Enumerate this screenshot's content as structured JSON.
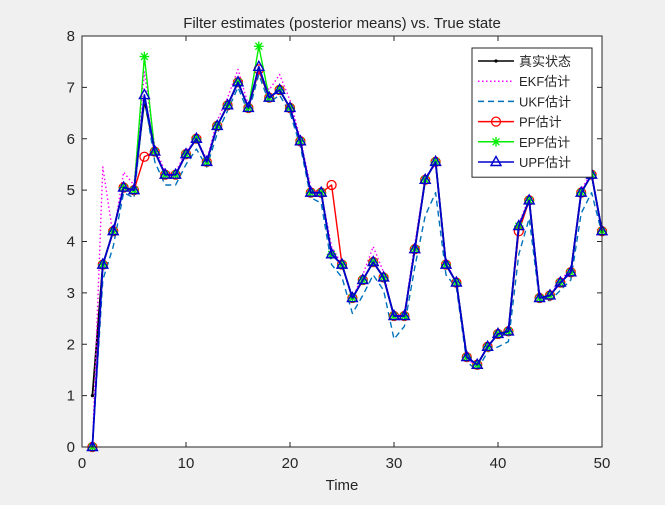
{
  "chart_data": {
    "type": "line",
    "title": "Filter estimates (posterior means) vs. True state",
    "xlabel": "Time",
    "ylabel": "",
    "xlim": [
      0,
      50
    ],
    "ylim": [
      0,
      8
    ],
    "xticks": [
      0,
      10,
      20,
      30,
      40,
      50
    ],
    "yticks": [
      0,
      1,
      2,
      3,
      4,
      5,
      6,
      7,
      8
    ],
    "grid": false,
    "legend_position": "top-right",
    "x": [
      1,
      2,
      3,
      4,
      5,
      6,
      7,
      8,
      9,
      10,
      11,
      12,
      13,
      14,
      15,
      16,
      17,
      18,
      19,
      20,
      21,
      22,
      23,
      24,
      25,
      26,
      27,
      28,
      29,
      30,
      31,
      32,
      33,
      34,
      35,
      36,
      37,
      38,
      39,
      40,
      41,
      42,
      43,
      44,
      45,
      46,
      47,
      48,
      49,
      50
    ],
    "series": [
      {
        "name": "真实状态",
        "color": "#000000",
        "style": "solid",
        "marker": "dot",
        "values": [
          1.0,
          3.55,
          4.2,
          5.05,
          5.0,
          6.75,
          5.75,
          5.3,
          5.3,
          5.7,
          6.0,
          5.55,
          6.25,
          6.65,
          7.1,
          6.6,
          7.35,
          6.8,
          6.95,
          6.6,
          5.95,
          4.95,
          4.95,
          3.75,
          3.55,
          2.9,
          3.25,
          3.6,
          3.3,
          2.55,
          2.55,
          3.85,
          5.2,
          5.55,
          3.55,
          3.2,
          1.75,
          1.6,
          1.95,
          2.2,
          2.25,
          4.3,
          4.8,
          2.9,
          2.95,
          3.2,
          3.4,
          4.95,
          5.3,
          4.2
        ]
      },
      {
        "name": "EKF估计",
        "color": "#ff00ff",
        "style": "dotted",
        "marker": "none",
        "values": [
          0.0,
          5.45,
          4.1,
          5.35,
          5.1,
          7.3,
          5.85,
          5.35,
          5.35,
          5.75,
          6.0,
          5.6,
          6.35,
          6.8,
          7.35,
          6.65,
          7.3,
          6.95,
          7.25,
          6.75,
          6.0,
          5.05,
          4.95,
          3.9,
          3.55,
          2.9,
          3.35,
          3.9,
          3.4,
          2.5,
          2.6,
          3.95,
          5.25,
          5.5,
          3.6,
          3.2,
          1.7,
          1.6,
          1.95,
          2.2,
          2.25,
          4.35,
          4.85,
          2.95,
          2.95,
          3.25,
          3.45,
          5.0,
          5.35,
          4.2
        ]
      },
      {
        "name": "UKF估计",
        "color": "#0072bd",
        "style": "dashed",
        "marker": "none",
        "values": [
          0.0,
          3.25,
          3.9,
          4.95,
          4.85,
          6.8,
          5.55,
          5.1,
          5.1,
          5.5,
          5.8,
          5.45,
          6.1,
          6.55,
          7.0,
          6.5,
          7.25,
          6.7,
          6.85,
          6.5,
          5.85,
          4.85,
          4.75,
          3.55,
          3.3,
          2.6,
          2.95,
          3.35,
          3.05,
          2.1,
          2.35,
          3.5,
          4.5,
          4.95,
          3.35,
          3.1,
          1.65,
          1.5,
          1.85,
          1.95,
          2.05,
          3.75,
          4.45,
          2.85,
          2.85,
          3.05,
          3.25,
          4.55,
          4.95,
          4.15
        ]
      },
      {
        "name": "PF估计",
        "color": "#ff0000",
        "style": "solid",
        "marker": "circle",
        "values": [
          0.0,
          3.55,
          4.2,
          5.05,
          5.0,
          5.65,
          5.75,
          5.3,
          5.3,
          5.7,
          6.0,
          5.55,
          6.25,
          6.65,
          7.1,
          6.6,
          7.35,
          6.8,
          6.95,
          6.6,
          5.95,
          4.95,
          4.95,
          5.1,
          3.55,
          2.9,
          3.25,
          3.6,
          3.3,
          2.55,
          2.55,
          3.85,
          5.2,
          5.55,
          3.55,
          3.2,
          1.75,
          1.6,
          1.95,
          2.2,
          2.25,
          4.2,
          4.8,
          2.9,
          2.95,
          3.2,
          3.4,
          4.95,
          5.3,
          4.2
        ]
      },
      {
        "name": "EPF估计",
        "color": "#00ee00",
        "style": "solid",
        "marker": "star",
        "values": [
          0.0,
          3.55,
          4.2,
          5.05,
          5.0,
          7.6,
          5.75,
          5.3,
          5.3,
          5.7,
          6.0,
          5.55,
          6.25,
          6.65,
          7.1,
          6.6,
          7.8,
          6.8,
          6.95,
          6.6,
          5.95,
          4.95,
          4.95,
          3.75,
          3.55,
          2.9,
          3.25,
          3.6,
          3.3,
          2.55,
          2.55,
          3.85,
          5.2,
          5.55,
          3.55,
          3.2,
          1.75,
          1.6,
          1.95,
          2.2,
          2.25,
          4.3,
          4.8,
          2.9,
          2.95,
          3.2,
          3.4,
          4.95,
          5.3,
          4.2
        ]
      },
      {
        "name": "UPF估计",
        "color": "#0000cd",
        "style": "solid",
        "marker": "triangle",
        "values": [
          0.0,
          3.55,
          4.2,
          5.05,
          5.0,
          6.85,
          5.75,
          5.3,
          5.3,
          5.7,
          6.0,
          5.55,
          6.25,
          6.65,
          7.1,
          6.6,
          7.4,
          6.8,
          6.95,
          6.6,
          5.95,
          4.95,
          4.95,
          3.75,
          3.55,
          2.9,
          3.25,
          3.6,
          3.3,
          2.55,
          2.55,
          3.85,
          5.2,
          5.55,
          3.55,
          3.2,
          1.75,
          1.6,
          1.95,
          2.2,
          2.25,
          4.3,
          4.8,
          2.9,
          2.95,
          3.2,
          3.4,
          4.95,
          5.3,
          4.2
        ]
      }
    ]
  }
}
